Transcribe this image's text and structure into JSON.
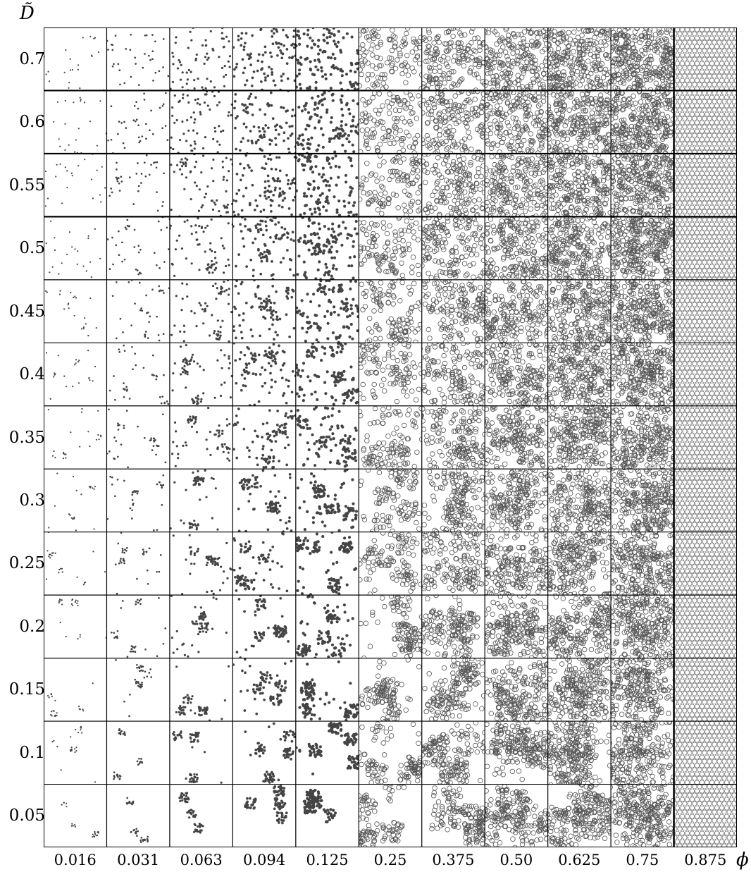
{
  "y_axis_label": "D̃",
  "x_axis_label": "ϕ",
  "row_values": [
    "0.7",
    "0.6",
    "0.55",
    "0.5",
    "0.45",
    "0.4",
    "0.35",
    "0.3",
    "0.25",
    "0.2",
    "0.15",
    "0.1",
    "0.05"
  ],
  "col_values": [
    "0.016",
    "0.031",
    "0.063",
    "0.094",
    "0.125",
    "0.25",
    "0.375",
    "0.50",
    "0.625",
    "0.75",
    "0.875"
  ],
  "colors": {
    "particle_small": "#444444",
    "particle_ring": "#555555",
    "background": "#ffffff"
  }
}
